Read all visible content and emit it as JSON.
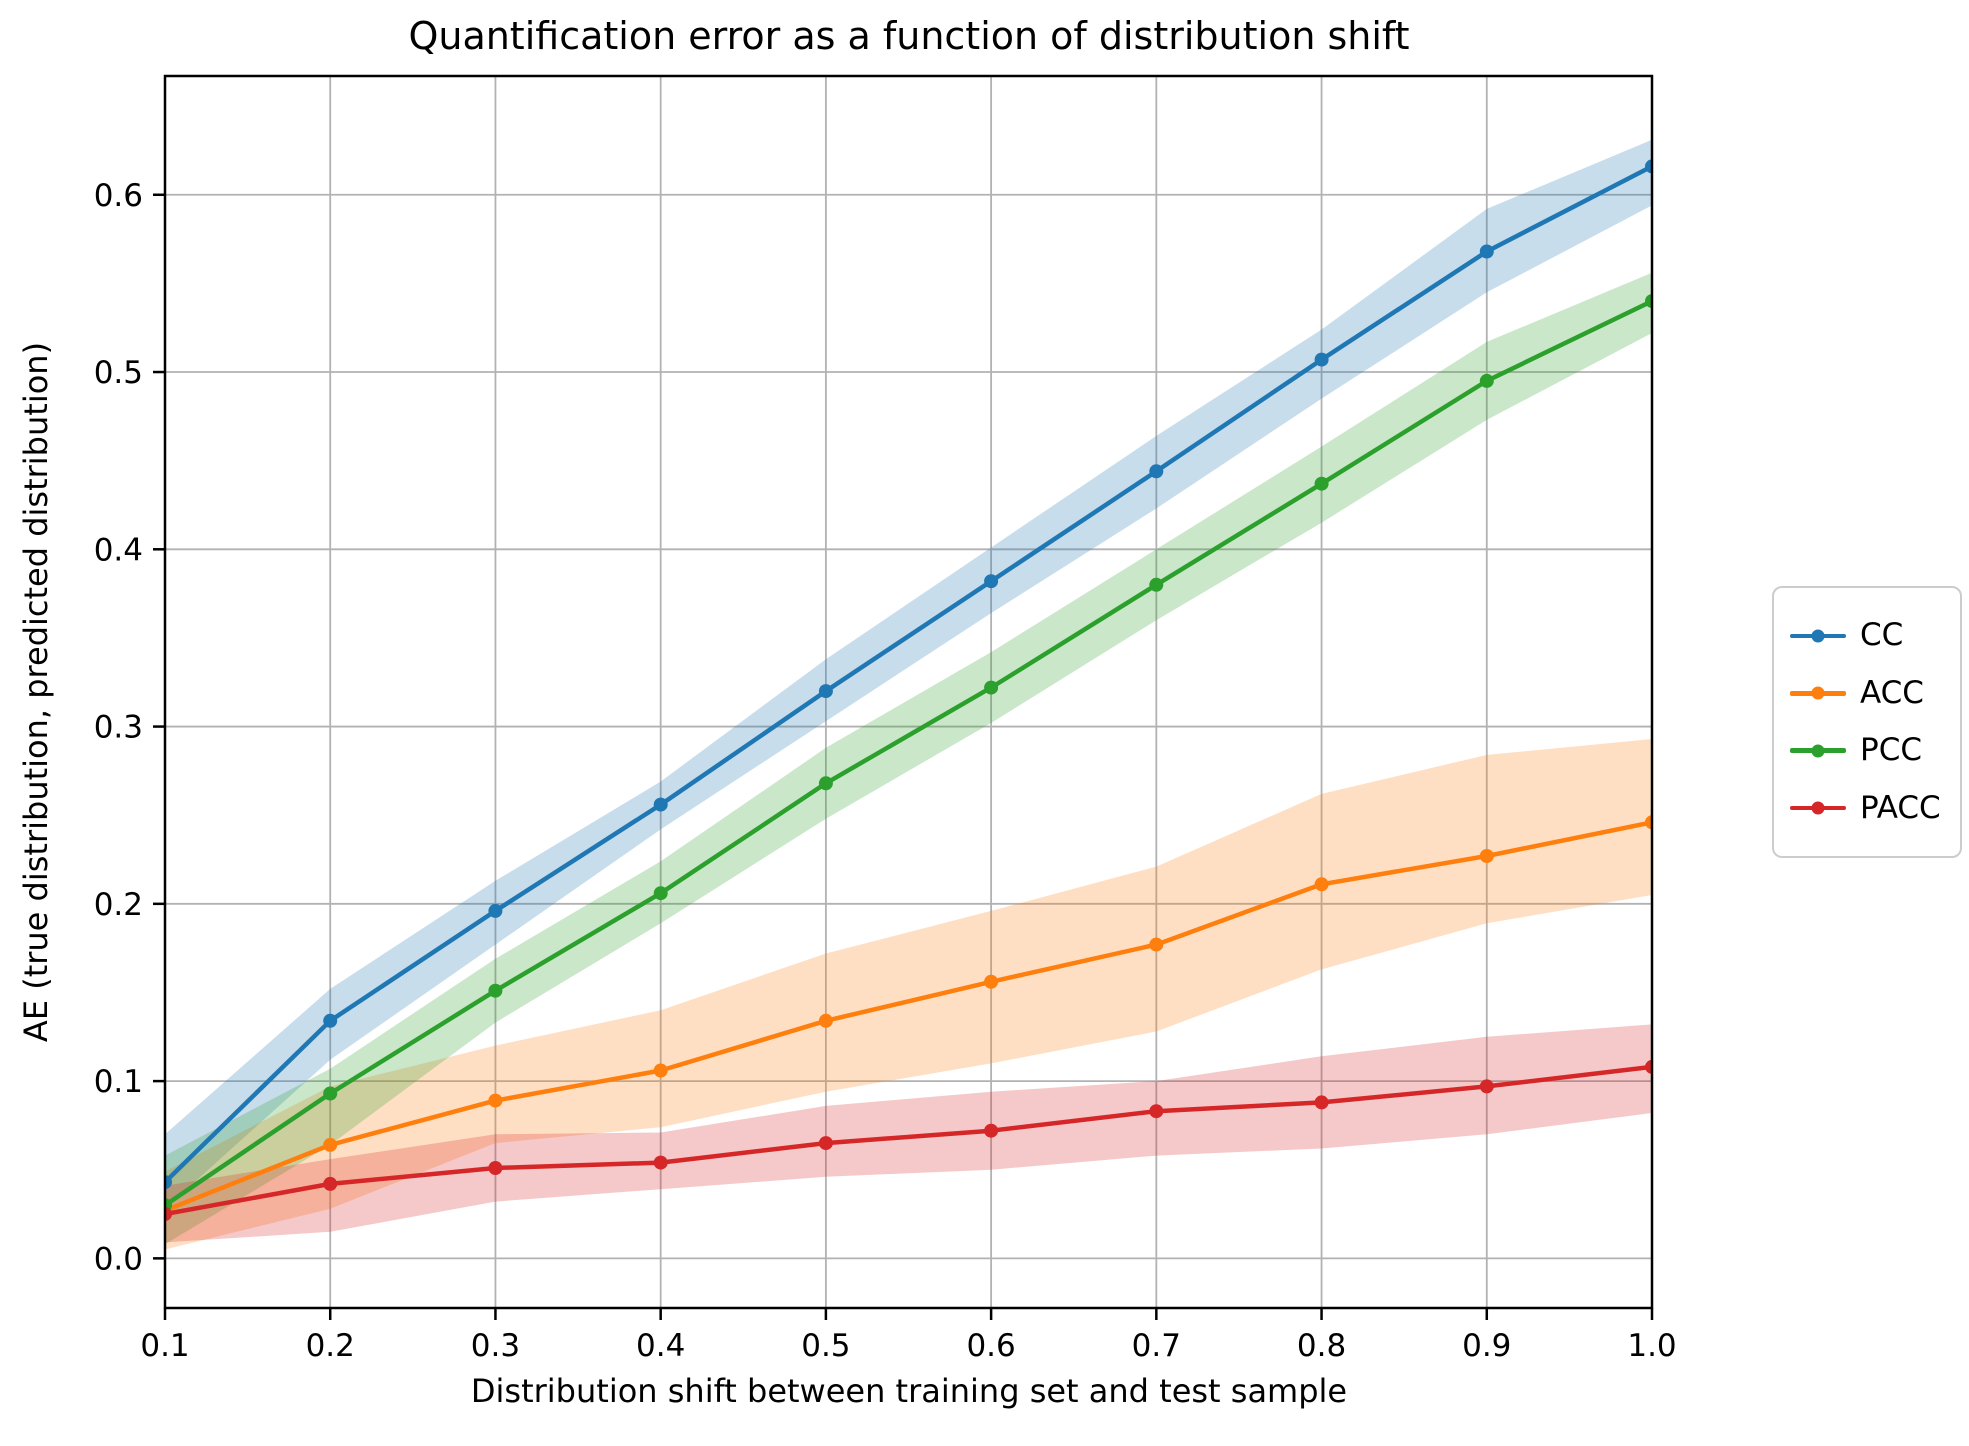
{
  "figure": {
    "title": "Quantification error as a function of distribution shift",
    "xlabel": "Distribution shift between training set and test sample",
    "ylabel": "AE (true distribution, predicted distribution)"
  },
  "legend": {
    "position": "right",
    "items": [
      {
        "label": "CC",
        "color": "#1f77b4"
      },
      {
        "label": "ACC",
        "color": "#ff7f0e"
      },
      {
        "label": "PCC",
        "color": "#2ca02c"
      },
      {
        "label": "PACC",
        "color": "#d62728"
      }
    ]
  },
  "chart_data": {
    "type": "line",
    "title": "Quantification error as a function of distribution shift",
    "xlabel": "Distribution shift between training set and test sample",
    "ylabel": "AE (true distribution, predicted distribution)",
    "x": [
      0.1,
      0.2,
      0.3,
      0.4,
      0.5,
      0.6,
      0.7,
      0.8,
      0.9,
      1.0
    ],
    "xticks": [
      0.1,
      0.2,
      0.3,
      0.4,
      0.5,
      0.6,
      0.7,
      0.8,
      0.9,
      1.0
    ],
    "yticks": [
      0.0,
      0.1,
      0.2,
      0.3,
      0.4,
      0.5,
      0.6
    ],
    "xlim": [
      0.1,
      1.0
    ],
    "ylim": [
      -0.028,
      0.667
    ],
    "grid": true,
    "grid_color": "#b2b2b2",
    "band_alpha": 0.25,
    "legend_position": "center right outside",
    "series": [
      {
        "name": "CC",
        "color": "#1f77b4",
        "values": [
          0.043,
          0.134,
          0.196,
          0.256,
          0.32,
          0.382,
          0.444,
          0.507,
          0.568,
          0.616
        ],
        "band_lower": [
          0.028,
          0.112,
          0.177,
          0.242,
          0.303,
          0.364,
          0.423,
          0.485,
          0.545,
          0.594
        ],
        "band_upper": [
          0.07,
          0.152,
          0.213,
          0.269,
          0.338,
          0.401,
          0.464,
          0.524,
          0.592,
          0.631
        ]
      },
      {
        "name": "ACC",
        "color": "#ff7f0e",
        "values": [
          0.027,
          0.064,
          0.089,
          0.106,
          0.134,
          0.156,
          0.177,
          0.211,
          0.227,
          0.246
        ],
        "band_lower": [
          0.005,
          0.028,
          0.065,
          0.074,
          0.094,
          0.11,
          0.128,
          0.163,
          0.189,
          0.205
        ],
        "band_upper": [
          0.049,
          0.097,
          0.12,
          0.14,
          0.172,
          0.196,
          0.221,
          0.262,
          0.284,
          0.293
        ]
      },
      {
        "name": "PCC",
        "color": "#2ca02c",
        "values": [
          0.03,
          0.093,
          0.151,
          0.206,
          0.268,
          0.322,
          0.38,
          0.437,
          0.495,
          0.54
        ],
        "band_lower": [
          0.008,
          0.064,
          0.133,
          0.189,
          0.248,
          0.302,
          0.36,
          0.415,
          0.473,
          0.522
        ],
        "band_upper": [
          0.058,
          0.107,
          0.169,
          0.224,
          0.288,
          0.342,
          0.4,
          0.458,
          0.517,
          0.556
        ]
      },
      {
        "name": "PACC",
        "color": "#d62728",
        "values": [
          0.025,
          0.042,
          0.051,
          0.054,
          0.065,
          0.072,
          0.083,
          0.088,
          0.097,
          0.108
        ],
        "band_lower": [
          0.009,
          0.015,
          0.032,
          0.039,
          0.046,
          0.05,
          0.058,
          0.062,
          0.07,
          0.082
        ],
        "band_upper": [
          0.041,
          0.056,
          0.07,
          0.071,
          0.086,
          0.094,
          0.1,
          0.114,
          0.125,
          0.132
        ]
      }
    ]
  }
}
